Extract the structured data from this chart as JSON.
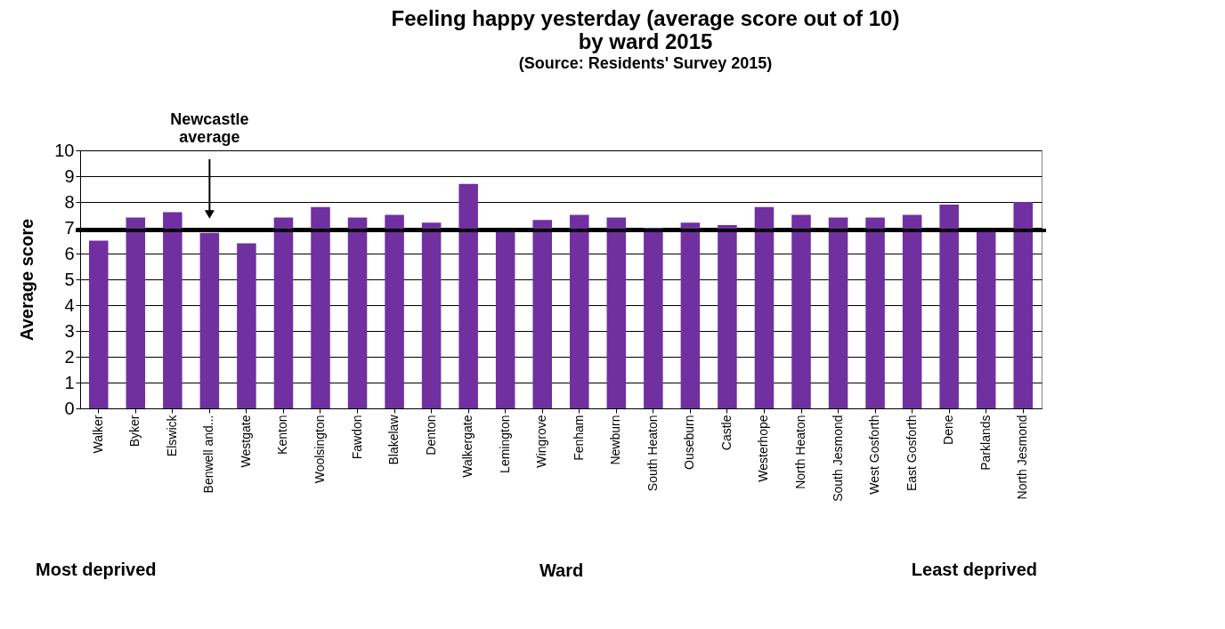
{
  "chart_data": {
    "type": "bar",
    "title": "Feeling happy yesterday (average score out of 10)\nby ward 2015",
    "subtitle": "(Source: Residents' Survey 2015)",
    "xlabel": "Ward",
    "ylabel": "Average score",
    "categories": [
      "Walker",
      "Byker",
      "Elswick",
      "Benwell and...",
      "Westgate",
      "Kenton",
      "Woolsington",
      "Fawdon",
      "Blakelaw",
      "Denton",
      "Walkergate",
      "Lemington",
      "Wingrove",
      "Fenham",
      "Newburn",
      "South Heaton",
      "Ouseburn",
      "Castle",
      "Westerhope",
      "North Heaton",
      "South Jesmond",
      "West Gosforth",
      "East Gosforth",
      "Dene",
      "Parklands",
      "North Jesmond"
    ],
    "values": [
      6.5,
      7.4,
      7.6,
      6.8,
      6.4,
      7.4,
      7.8,
      7.4,
      7.5,
      7.2,
      8.7,
      6.9,
      7.3,
      7.5,
      7.4,
      7.0,
      7.2,
      7.1,
      7.8,
      7.5,
      7.4,
      7.4,
      7.5,
      7.9,
      6.9,
      8.0
    ],
    "color": "#7030a0",
    "ylim": [
      0,
      10
    ],
    "yticks": [
      0,
      1,
      2,
      3,
      4,
      5,
      6,
      7,
      8,
      9,
      10
    ],
    "grid": "y",
    "ref_lines": [
      {
        "axis": "y",
        "value": 6.9,
        "label": "Newcastle average",
        "color": "#000000"
      }
    ],
    "annotations": [
      "Most deprived",
      "Least deprived"
    ]
  }
}
